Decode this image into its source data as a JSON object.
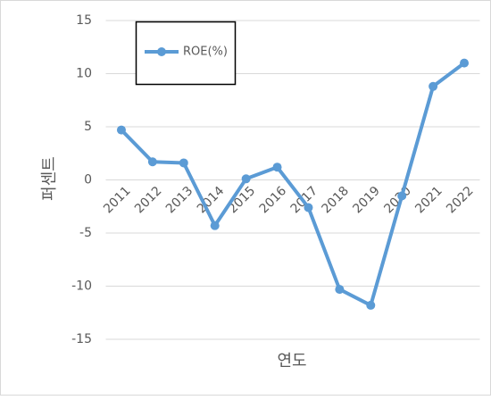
{
  "chart_data": {
    "type": "line",
    "categories": [
      "2011",
      "2012",
      "2013",
      "2014",
      "2015",
      "2016",
      "2017",
      "2018",
      "2019",
      "2020",
      "2021",
      "2022"
    ],
    "series": [
      {
        "name": "ROE(%)",
        "color": "#5b9bd5",
        "values": [
          4.7,
          1.7,
          1.6,
          -4.3,
          0.1,
          1.2,
          -2.6,
          -10.3,
          -11.8,
          -1.5,
          8.8,
          11.0
        ]
      }
    ],
    "ylim": [
      -15,
      15
    ],
    "yticks": [
      -15,
      -10,
      -5,
      0,
      5,
      10,
      15
    ],
    "x_label": "연도",
    "y_label": "퍼센트",
    "grid": true,
    "legend": "top-left"
  }
}
